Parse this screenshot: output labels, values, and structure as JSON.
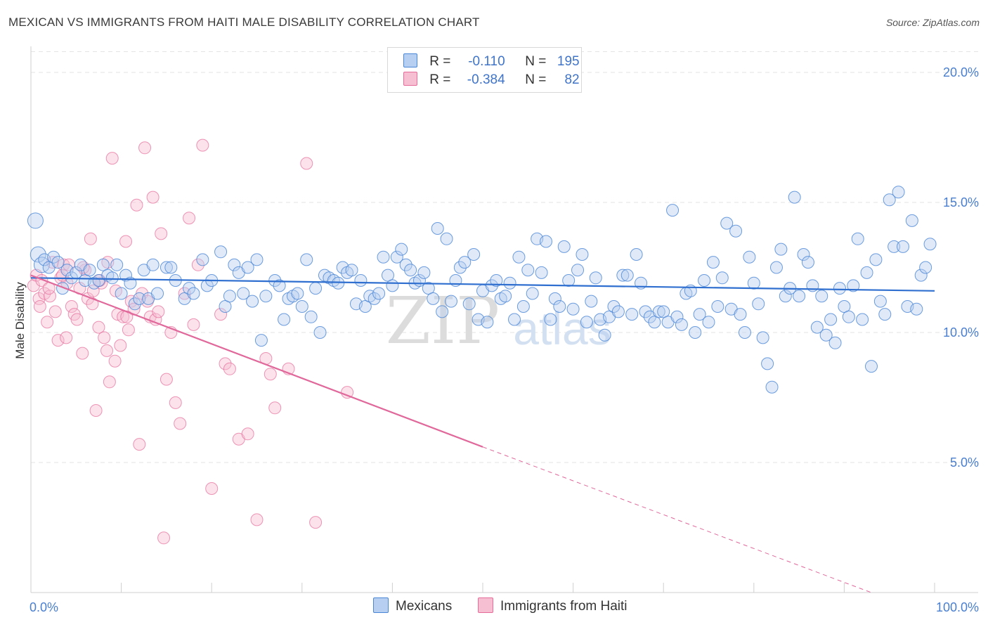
{
  "header": {
    "title": "MEXICAN VS IMMIGRANTS FROM HAITI MALE DISABILITY CORRELATION CHART",
    "source": "Source: ZipAtlas.com"
  },
  "legend_top": {
    "rows": [
      {
        "r_label": "R =",
        "r_value": "-0.110",
        "n_label": "N =",
        "n_value": "195"
      },
      {
        "r_label": "R =",
        "r_value": "-0.384",
        "n_label": "N =",
        "n_value": "82"
      }
    ]
  },
  "colors": {
    "blue": "#4a86d6",
    "blue_fill": "#b7cff0",
    "pink": "#e56b98",
    "pink_fill": "#f7bfd2",
    "grid": "#e3e3e3",
    "tick_text": "#4a7fd0"
  },
  "chart_data": {
    "type": "scatter",
    "title": "MEXICAN VS IMMIGRANTS FROM HAITI MALE DISABILITY CORRELATION CHART",
    "xlabel": "",
    "ylabel": "Male Disability",
    "xlim": [
      0,
      100
    ],
    "ylim": [
      0,
      21
    ],
    "x_tick_labels": [
      "0.0%",
      "100.0%"
    ],
    "y_ticks": [
      5,
      10,
      15,
      20
    ],
    "y_tick_labels": [
      "5.0%",
      "10.0%",
      "15.0%",
      "20.0%"
    ],
    "grid": true,
    "legend_position": "top-center",
    "watermark": "ZIPatlas",
    "series": [
      {
        "name": "Mexicans",
        "color": "#4a86d6",
        "r": -0.11,
        "n": 195,
        "trend": {
          "x0": 0,
          "y0": 12.1,
          "x1": 100,
          "y1": 11.6
        },
        "points": [
          [
            0.5,
            14.3
          ],
          [
            0.8,
            13.0
          ],
          [
            1.2,
            12.6
          ],
          [
            1.5,
            12.8
          ],
          [
            2.0,
            12.5
          ],
          [
            2.5,
            12.9
          ],
          [
            3.0,
            12.7
          ],
          [
            3.5,
            11.7
          ],
          [
            4.0,
            12.4
          ],
          [
            4.5,
            12.1
          ],
          [
            5.0,
            12.3
          ],
          [
            5.5,
            12.6
          ],
          [
            6.0,
            12.0
          ],
          [
            6.5,
            12.4
          ],
          [
            7.0,
            11.9
          ],
          [
            7.5,
            12.0
          ],
          [
            8.0,
            12.6
          ],
          [
            8.5,
            12.2
          ],
          [
            9.0,
            12.1
          ],
          [
            9.5,
            12.6
          ],
          [
            10.0,
            11.5
          ],
          [
            10.5,
            12.2
          ],
          [
            11.0,
            11.9
          ],
          [
            11.5,
            11.1
          ],
          [
            12.0,
            11.3
          ],
          [
            12.5,
            12.4
          ],
          [
            13.0,
            11.3
          ],
          [
            13.5,
            12.6
          ],
          [
            14.0,
            11.5
          ],
          [
            15.0,
            12.5
          ],
          [
            15.5,
            12.5
          ],
          [
            16.0,
            12.0
          ],
          [
            17.0,
            11.3
          ],
          [
            17.5,
            11.7
          ],
          [
            18.0,
            11.5
          ],
          [
            19.0,
            12.8
          ],
          [
            19.5,
            11.8
          ],
          [
            20.0,
            12.0
          ],
          [
            21.0,
            13.1
          ],
          [
            21.5,
            11.0
          ],
          [
            22.0,
            11.4
          ],
          [
            22.5,
            12.6
          ],
          [
            23.0,
            12.3
          ],
          [
            23.5,
            11.5
          ],
          [
            24.0,
            12.5
          ],
          [
            24.5,
            11.2
          ],
          [
            25.0,
            12.8
          ],
          [
            25.5,
            9.7
          ],
          [
            26.0,
            11.4
          ],
          [
            27.0,
            12.0
          ],
          [
            27.5,
            11.8
          ],
          [
            28.0,
            10.5
          ],
          [
            28.5,
            11.3
          ],
          [
            29.0,
            11.4
          ],
          [
            29.5,
            11.5
          ],
          [
            30.0,
            11.0
          ],
          [
            30.5,
            12.8
          ],
          [
            31.0,
            10.6
          ],
          [
            31.5,
            11.7
          ],
          [
            32.0,
            10.0
          ],
          [
            32.5,
            12.2
          ],
          [
            33.0,
            12.1
          ],
          [
            33.5,
            12.0
          ],
          [
            34.0,
            11.9
          ],
          [
            34.5,
            12.5
          ],
          [
            35.0,
            12.3
          ],
          [
            35.5,
            12.4
          ],
          [
            36.0,
            11.1
          ],
          [
            36.5,
            12.0
          ],
          [
            37.0,
            11.0
          ],
          [
            37.5,
            11.4
          ],
          [
            38.0,
            11.3
          ],
          [
            38.5,
            11.5
          ],
          [
            39.0,
            12.9
          ],
          [
            39.5,
            12.2
          ],
          [
            40.0,
            11.8
          ],
          [
            40.5,
            12.9
          ],
          [
            41.0,
            13.2
          ],
          [
            41.5,
            12.6
          ],
          [
            42.0,
            12.4
          ],
          [
            42.5,
            11.9
          ],
          [
            43.0,
            12.0
          ],
          [
            43.5,
            12.3
          ],
          [
            44.0,
            11.7
          ],
          [
            44.5,
            11.3
          ],
          [
            45.0,
            14.0
          ],
          [
            45.5,
            10.8
          ],
          [
            46.0,
            13.6
          ],
          [
            46.5,
            11.2
          ],
          [
            47.0,
            12.0
          ],
          [
            47.5,
            12.5
          ],
          [
            48.0,
            12.7
          ],
          [
            48.5,
            11.1
          ],
          [
            49.0,
            13.0
          ],
          [
            49.5,
            10.5
          ],
          [
            50.0,
            11.6
          ],
          [
            50.5,
            10.4
          ],
          [
            51.0,
            11.8
          ],
          [
            51.5,
            12.0
          ],
          [
            52.0,
            11.3
          ],
          [
            52.5,
            11.4
          ],
          [
            53.0,
            11.9
          ],
          [
            53.5,
            10.5
          ],
          [
            54.0,
            12.9
          ],
          [
            54.5,
            11.0
          ],
          [
            55.0,
            12.4
          ],
          [
            55.5,
            11.5
          ],
          [
            56.0,
            13.6
          ],
          [
            56.5,
            12.3
          ],
          [
            57.0,
            13.5
          ],
          [
            57.5,
            10.5
          ],
          [
            58.0,
            11.3
          ],
          [
            58.5,
            11.0
          ],
          [
            59.0,
            13.3
          ],
          [
            59.5,
            12.0
          ],
          [
            60.0,
            10.9
          ],
          [
            60.5,
            12.4
          ],
          [
            61.0,
            13.0
          ],
          [
            61.5,
            10.4
          ],
          [
            62.0,
            11.2
          ],
          [
            62.5,
            12.1
          ],
          [
            63.0,
            10.5
          ],
          [
            63.5,
            9.9
          ],
          [
            64.0,
            10.6
          ],
          [
            64.5,
            11.0
          ],
          [
            65.0,
            10.8
          ],
          [
            65.5,
            12.2
          ],
          [
            66.0,
            12.2
          ],
          [
            66.5,
            10.7
          ],
          [
            67.0,
            13.0
          ],
          [
            67.5,
            11.9
          ],
          [
            68.0,
            10.8
          ],
          [
            68.5,
            10.6
          ],
          [
            69.0,
            10.4
          ],
          [
            69.5,
            10.8
          ],
          [
            70.0,
            10.8
          ],
          [
            70.5,
            10.4
          ],
          [
            71.0,
            14.7
          ],
          [
            71.5,
            10.6
          ],
          [
            72.0,
            10.3
          ],
          [
            72.5,
            11.5
          ],
          [
            73.0,
            11.6
          ],
          [
            73.5,
            10.0
          ],
          [
            74.0,
            10.7
          ],
          [
            74.5,
            12.0
          ],
          [
            75.0,
            10.4
          ],
          [
            75.5,
            12.7
          ],
          [
            76.0,
            11.0
          ],
          [
            76.5,
            12.1
          ],
          [
            77.0,
            14.2
          ],
          [
            77.5,
            10.9
          ],
          [
            78.0,
            13.9
          ],
          [
            78.5,
            10.7
          ],
          [
            79.0,
            10.0
          ],
          [
            79.5,
            12.9
          ],
          [
            80.0,
            11.9
          ],
          [
            80.5,
            11.1
          ],
          [
            81.0,
            9.8
          ],
          [
            81.5,
            8.8
          ],
          [
            82.0,
            7.9
          ],
          [
            82.5,
            12.5
          ],
          [
            83.0,
            13.2
          ],
          [
            83.5,
            11.4
          ],
          [
            84.0,
            11.7
          ],
          [
            84.5,
            15.2
          ],
          [
            85.0,
            11.4
          ],
          [
            85.5,
            13.0
          ],
          [
            86.0,
            12.7
          ],
          [
            86.5,
            11.8
          ],
          [
            87.0,
            10.2
          ],
          [
            87.5,
            11.4
          ],
          [
            88.0,
            9.9
          ],
          [
            88.5,
            10.5
          ],
          [
            89.0,
            9.6
          ],
          [
            89.5,
            11.7
          ],
          [
            90.0,
            11.0
          ],
          [
            90.5,
            10.6
          ],
          [
            91.0,
            11.8
          ],
          [
            91.5,
            13.6
          ],
          [
            92.0,
            10.5
          ],
          [
            92.5,
            12.3
          ],
          [
            93.0,
            8.7
          ],
          [
            93.5,
            12.8
          ],
          [
            94.0,
            11.2
          ],
          [
            94.5,
            10.7
          ],
          [
            95.0,
            15.1
          ],
          [
            95.5,
            13.3
          ],
          [
            96.0,
            15.4
          ],
          [
            96.5,
            13.3
          ],
          [
            97.0,
            11.0
          ],
          [
            97.5,
            14.3
          ],
          [
            98.0,
            10.9
          ],
          [
            98.5,
            12.2
          ],
          [
            99.0,
            12.5
          ],
          [
            99.5,
            13.4
          ]
        ]
      },
      {
        "name": "Immigrants from Haiti",
        "color": "#e56b98",
        "r": -0.384,
        "n": 82,
        "trend": {
          "x0": 0,
          "y0": 12.2,
          "x1": 50,
          "y1": 5.6,
          "x_dash_end": 93,
          "y_dash_end": 0
        },
        "points": [
          [
            0.3,
            11.8
          ],
          [
            0.6,
            12.2
          ],
          [
            0.9,
            11.3
          ],
          [
            1.2,
            12.0
          ],
          [
            1.5,
            11.5
          ],
          [
            1.8,
            10.4
          ],
          [
            2.1,
            11.4
          ],
          [
            2.4,
            12.7
          ],
          [
            2.7,
            10.8
          ],
          [
            3.0,
            9.7
          ],
          [
            3.3,
            12.1
          ],
          [
            3.6,
            12.6
          ],
          [
            3.9,
            9.8
          ],
          [
            4.2,
            12.6
          ],
          [
            4.5,
            11.0
          ],
          [
            4.8,
            10.7
          ],
          [
            5.1,
            10.5
          ],
          [
            5.4,
            11.7
          ],
          [
            5.7,
            9.2
          ],
          [
            6.0,
            12.4
          ],
          [
            6.3,
            11.3
          ],
          [
            6.6,
            13.6
          ],
          [
            6.9,
            11.6
          ],
          [
            7.2,
            7.0
          ],
          [
            7.5,
            10.2
          ],
          [
            7.8,
            11.9
          ],
          [
            8.1,
            9.8
          ],
          [
            8.4,
            9.3
          ],
          [
            8.7,
            8.1
          ],
          [
            9.0,
            16.7
          ],
          [
            9.3,
            8.9
          ],
          [
            9.6,
            10.7
          ],
          [
            9.9,
            9.5
          ],
          [
            10.2,
            10.6
          ],
          [
            10.5,
            13.5
          ],
          [
            10.8,
            10.1
          ],
          [
            11.1,
            11.2
          ],
          [
            11.4,
            10.9
          ],
          [
            11.7,
            14.9
          ],
          [
            12.0,
            5.7
          ],
          [
            12.3,
            11.5
          ],
          [
            12.6,
            17.1
          ],
          [
            12.9,
            11.2
          ],
          [
            13.2,
            10.6
          ],
          [
            13.5,
            15.2
          ],
          [
            13.8,
            10.5
          ],
          [
            14.1,
            10.8
          ],
          [
            14.4,
            13.8
          ],
          [
            14.7,
            2.1
          ],
          [
            15.0,
            8.2
          ],
          [
            15.5,
            10.0
          ],
          [
            16.0,
            7.3
          ],
          [
            16.5,
            6.5
          ],
          [
            17.0,
            11.5
          ],
          [
            17.5,
            14.4
          ],
          [
            18.0,
            10.3
          ],
          [
            18.5,
            12.6
          ],
          [
            19.0,
            17.2
          ],
          [
            20.0,
            4.0
          ],
          [
            21.0,
            10.7
          ],
          [
            21.5,
            8.8
          ],
          [
            22.0,
            8.6
          ],
          [
            23.0,
            5.9
          ],
          [
            24.0,
            6.1
          ],
          [
            25.0,
            2.8
          ],
          [
            26.0,
            9.0
          ],
          [
            26.5,
            8.4
          ],
          [
            27.0,
            7.1
          ],
          [
            28.5,
            8.6
          ],
          [
            30.5,
            16.5
          ],
          [
            31.5,
            2.7
          ],
          [
            35.0,
            7.7
          ],
          [
            5.8,
            12.5
          ],
          [
            6.8,
            11.1
          ],
          [
            7.6,
            12.0
          ],
          [
            8.5,
            12.7
          ],
          [
            9.4,
            11.6
          ],
          [
            10.6,
            10.6
          ],
          [
            2.0,
            11.7
          ],
          [
            4.0,
            11.9
          ],
          [
            3.5,
            12.2
          ],
          [
            1.0,
            11.0
          ]
        ]
      }
    ]
  },
  "bottom_legend": {
    "items": [
      {
        "label": "Mexicans"
      },
      {
        "label": "Immigrants from Haiti"
      }
    ]
  }
}
